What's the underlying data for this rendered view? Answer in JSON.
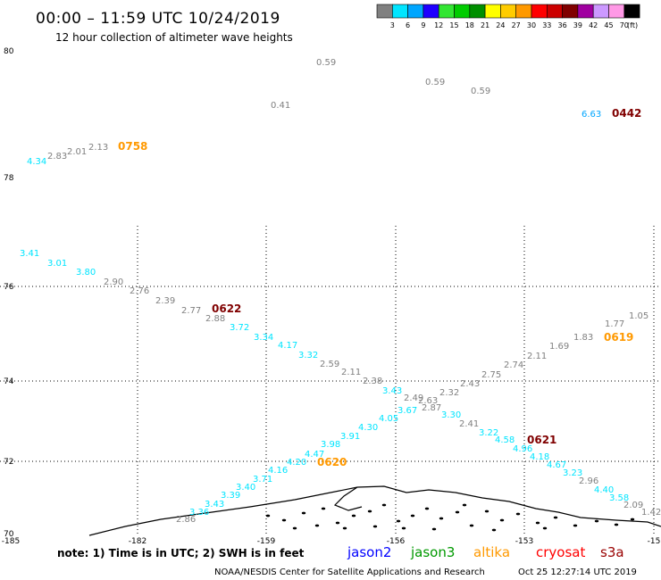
{
  "header": {
    "title": "00:00 – 11:59 UTC 10/24/2019",
    "subtitle": "12 hour collection of altimeter wave heights"
  },
  "colorbar": {
    "unit": "(ft)",
    "steps": [
      {
        "label": "3",
        "color": "#808080"
      },
      {
        "label": "6",
        "color": "#00e5ff"
      },
      {
        "label": "9",
        "color": "#00a6ff"
      },
      {
        "label": "12",
        "color": "#1f00ff"
      },
      {
        "label": "15",
        "color": "#33e633"
      },
      {
        "label": "18",
        "color": "#00cc00"
      },
      {
        "label": "21",
        "color": "#008f00"
      },
      {
        "label": "24",
        "color": "#ffff00"
      },
      {
        "label": "27",
        "color": "#ffcc00"
      },
      {
        "label": "30",
        "color": "#ff9900"
      },
      {
        "label": "33",
        "color": "#ff0000"
      },
      {
        "label": "36",
        "color": "#cc0000"
      },
      {
        "label": "39",
        "color": "#800000"
      },
      {
        "label": "42",
        "color": "#a000a0"
      },
      {
        "label": "45",
        "color": "#cc99ff"
      },
      {
        "label": "70",
        "color": "#ff99e6"
      },
      {
        "label": "",
        "color": "#000000"
      }
    ]
  },
  "note": "note:  1) Time is in UTC;  2) SWH is in feet",
  "satellites": [
    {
      "name": "jason2",
      "color": "#0000ff"
    },
    {
      "name": "jason3",
      "color": "#009900"
    },
    {
      "name": "altika",
      "color": "#ff9900"
    },
    {
      "name": "cryosat",
      "color": "#ff0000"
    },
    {
      "name": "s3a",
      "color": "#990000"
    }
  ],
  "credit": "NOAA/NESDIS Center for Satellite Applications and Research",
  "generated": "Oct 25 12:27:14 UTC 2019",
  "chart_data": {
    "type": "scatter",
    "x_ticks": [
      "-185",
      "-182",
      "-159",
      "-156",
      "-153",
      "-15"
    ],
    "y_ticks": [
      "80",
      "78",
      "76",
      "74",
      "72",
      "70"
    ],
    "grid": "dotted",
    "series": [
      {
        "name": "Track A",
        "points": [
          {
            "t": "4.34",
            "c": "#00e5ff"
          },
          {
            "t": "2.83",
            "c": "#808080"
          },
          {
            "t": "2.01",
            "c": "#808080"
          },
          {
            "t": "2.13",
            "c": "#808080"
          },
          {
            "t": "0758",
            "c": "#ff9900",
            "time": true
          },
          {
            "t": "3.41",
            "c": "#00e5ff"
          },
          {
            "t": "3.01",
            "c": "#00e5ff"
          },
          {
            "t": "3.80",
            "c": "#00e5ff"
          },
          {
            "t": "2.90",
            "c": "#808080"
          },
          {
            "t": "2.76",
            "c": "#808080"
          },
          {
            "t": "2.39",
            "c": "#808080"
          },
          {
            "t": "2.77",
            "c": "#808080"
          },
          {
            "t": "0622",
            "c": "#800000",
            "time": true
          },
          {
            "t": "2.88",
            "c": "#808080"
          },
          {
            "t": "3.72",
            "c": "#00e5ff"
          },
          {
            "t": "3.34",
            "c": "#00e5ff"
          },
          {
            "t": "4.17",
            "c": "#00e5ff"
          },
          {
            "t": "3.32",
            "c": "#00e5ff"
          },
          {
            "t": "2.59",
            "c": "#808080"
          },
          {
            "t": "2.11",
            "c": "#808080"
          },
          {
            "t": "2.38",
            "c": "#808080"
          },
          {
            "t": "2.49",
            "c": "#808080"
          },
          {
            "t": "2.63",
            "c": "#808080"
          },
          {
            "t": "2.87",
            "c": "#808080"
          },
          {
            "t": "3.30",
            "c": "#00e5ff"
          },
          {
            "t": "2.41",
            "c": "#808080"
          },
          {
            "t": "3.22",
            "c": "#00e5ff"
          },
          {
            "t": "4.58",
            "c": "#00e5ff"
          },
          {
            "t": "0621",
            "c": "#800000",
            "time": true
          },
          {
            "t": "4.96",
            "c": "#00e5ff"
          },
          {
            "t": "4.18",
            "c": "#00e5ff"
          },
          {
            "t": "4.67",
            "c": "#00e5ff"
          },
          {
            "t": "3.23",
            "c": "#00e5ff"
          },
          {
            "t": "2.96",
            "c": "#808080"
          },
          {
            "t": "4.40",
            "c": "#00e5ff"
          },
          {
            "t": "3.58",
            "c": "#00e5ff"
          },
          {
            "t": "2.09",
            "c": "#808080"
          },
          {
            "t": "1.42",
            "c": "#808080"
          }
        ]
      },
      {
        "name": "Track B",
        "points": [
          {
            "t": "2.86",
            "c": "#808080"
          },
          {
            "t": "3.36",
            "c": "#00e5ff"
          },
          {
            "t": "3.43",
            "c": "#00e5ff"
          },
          {
            "t": "3.39",
            "c": "#00e5ff"
          },
          {
            "t": "3.40",
            "c": "#00e5ff"
          },
          {
            "t": "3.71",
            "c": "#00e5ff"
          },
          {
            "t": "4.16",
            "c": "#00e5ff"
          },
          {
            "t": "4.20",
            "c": "#00e5ff"
          },
          {
            "t": "0620",
            "c": "#ff9900",
            "time": true
          },
          {
            "t": "4.47",
            "c": "#00e5ff"
          },
          {
            "t": "3.98",
            "c": "#00e5ff"
          },
          {
            "t": "3.91",
            "c": "#00e5ff"
          },
          {
            "t": "4.30",
            "c": "#00e5ff"
          },
          {
            "t": "4.05",
            "c": "#00e5ff"
          },
          {
            "t": "3.67",
            "c": "#00e5ff"
          },
          {
            "t": "3.43",
            "c": "#00e5ff"
          },
          {
            "t": "2.32",
            "c": "#808080"
          },
          {
            "t": "2.43",
            "c": "#808080"
          },
          {
            "t": "2.75",
            "c": "#808080"
          },
          {
            "t": "2.74",
            "c": "#808080"
          },
          {
            "t": "2.11",
            "c": "#808080"
          },
          {
            "t": "1.69",
            "c": "#808080"
          },
          {
            "t": "1.83",
            "c": "#808080"
          },
          {
            "t": "0619",
            "c": "#ff9900",
            "time": true
          },
          {
            "t": "1.77",
            "c": "#808080"
          },
          {
            "t": "1.05",
            "c": "#808080"
          }
        ]
      },
      {
        "name": "Track C",
        "points": [
          {
            "t": "0.41",
            "c": "#808080"
          },
          {
            "t": "0.59",
            "c": "#808080"
          },
          {
            "t": "0.59",
            "c": "#808080"
          },
          {
            "t": "0.59",
            "c": "#808080"
          },
          {
            "t": "6.63",
            "c": "#00a6ff"
          },
          {
            "t": "0442",
            "c": "#800000",
            "time": true
          }
        ]
      }
    ]
  }
}
